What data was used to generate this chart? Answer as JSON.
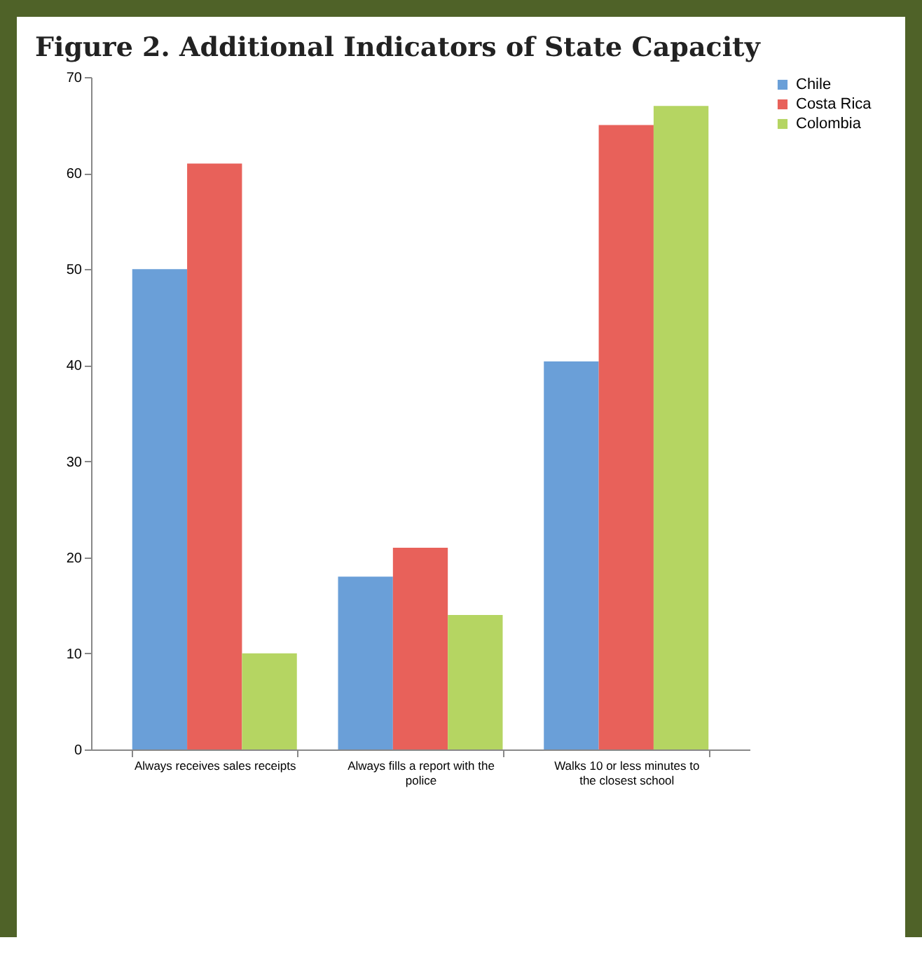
{
  "chart_data": {
    "type": "bar",
    "title": "Figure 2. Additional Indicators of State Capacity",
    "categories": [
      "Always receives sales receipts",
      "Always fills a report with the police",
      "Walks 10 or less minutes to the closest school"
    ],
    "series": [
      {
        "name": "Chile",
        "color": "#6a9fd8",
        "values": [
          50,
          18,
          40.4
        ]
      },
      {
        "name": "Costa Rica",
        "color": "#e8615a",
        "values": [
          61,
          21,
          65
        ]
      },
      {
        "name": "Colombia",
        "color": "#b5d562",
        "values": [
          10,
          14,
          67
        ]
      }
    ],
    "ylim": [
      0,
      70
    ],
    "yticks": [
      0,
      10,
      20,
      30,
      40,
      50,
      60,
      70
    ],
    "grid": false,
    "legend": "right"
  }
}
